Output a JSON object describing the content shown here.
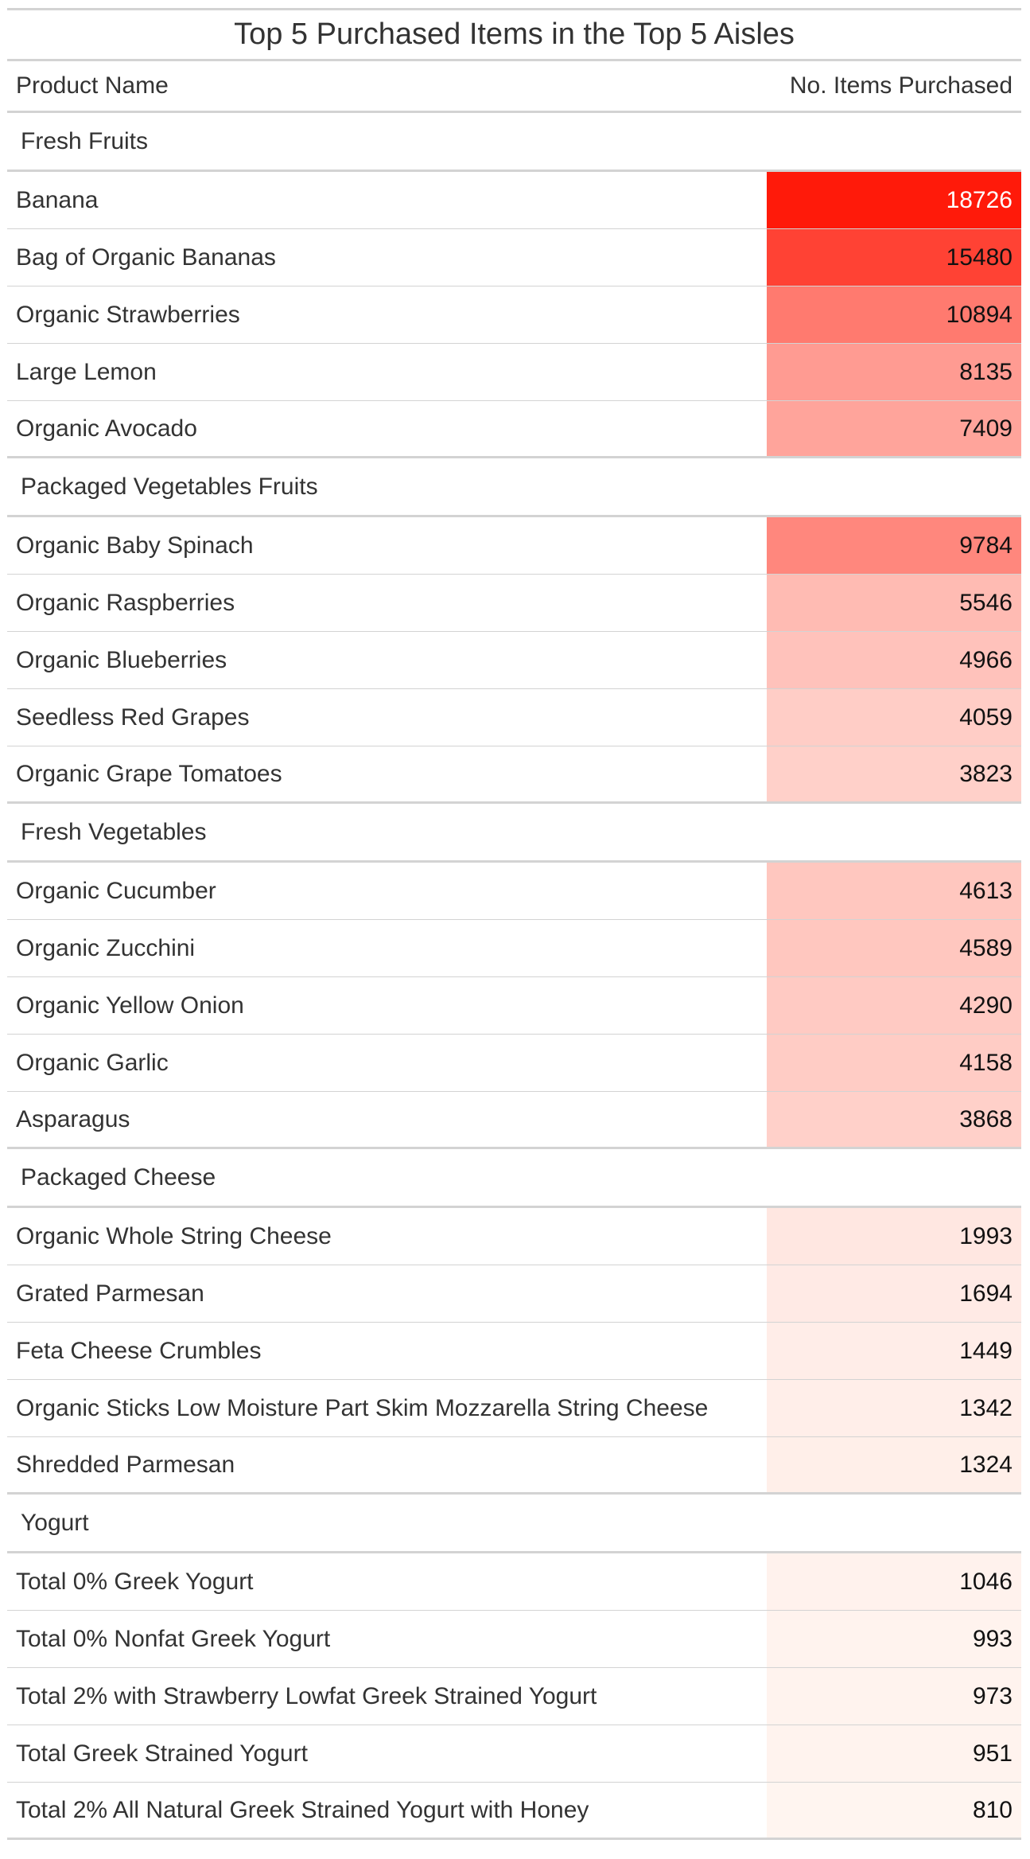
{
  "chart_data": {
    "type": "table",
    "title": "Top 5 Purchased Items in the Top 5 Aisles",
    "columns": [
      "Product Name",
      "No. Items Purchased"
    ],
    "color_scale": {
      "low": "#fff5f0",
      "high": "#ff1a0a"
    },
    "groups": [
      {
        "aisle": "Fresh Fruits",
        "rows": [
          {
            "product": "Banana",
            "count": 18726
          },
          {
            "product": "Bag of Organic Bananas",
            "count": 15480
          },
          {
            "product": "Organic Strawberries",
            "count": 10894
          },
          {
            "product": "Large Lemon",
            "count": 8135
          },
          {
            "product": "Organic Avocado",
            "count": 7409
          }
        ]
      },
      {
        "aisle": "Packaged Vegetables Fruits",
        "rows": [
          {
            "product": "Organic Baby Spinach",
            "count": 9784
          },
          {
            "product": "Organic Raspberries",
            "count": 5546
          },
          {
            "product": "Organic Blueberries",
            "count": 4966
          },
          {
            "product": "Seedless Red Grapes",
            "count": 4059
          },
          {
            "product": "Organic Grape Tomatoes",
            "count": 3823
          }
        ]
      },
      {
        "aisle": "Fresh Vegetables",
        "rows": [
          {
            "product": "Organic Cucumber",
            "count": 4613
          },
          {
            "product": "Organic Zucchini",
            "count": 4589
          },
          {
            "product": "Organic Yellow Onion",
            "count": 4290
          },
          {
            "product": "Organic Garlic",
            "count": 4158
          },
          {
            "product": "Asparagus",
            "count": 3868
          }
        ]
      },
      {
        "aisle": "Packaged Cheese",
        "rows": [
          {
            "product": "Organic Whole String Cheese",
            "count": 1993
          },
          {
            "product": "Grated Parmesan",
            "count": 1694
          },
          {
            "product": "Feta Cheese Crumbles",
            "count": 1449
          },
          {
            "product": "Organic Sticks Low Moisture Part Skim Mozzarella String Cheese",
            "count": 1342
          },
          {
            "product": "Shredded Parmesan",
            "count": 1324
          }
        ]
      },
      {
        "aisle": "Yogurt",
        "rows": [
          {
            "product": "Total 0% Greek Yogurt",
            "count": 1046
          },
          {
            "product": "Total 0% Nonfat Greek Yogurt",
            "count": 993
          },
          {
            "product": "Total 2% with Strawberry Lowfat Greek Strained Yogurt",
            "count": 973
          },
          {
            "product": "Total Greek Strained Yogurt",
            "count": 951
          },
          {
            "product": "Total 2% All Natural Greek Strained Yogurt with Honey",
            "count": 810
          }
        ]
      }
    ]
  }
}
